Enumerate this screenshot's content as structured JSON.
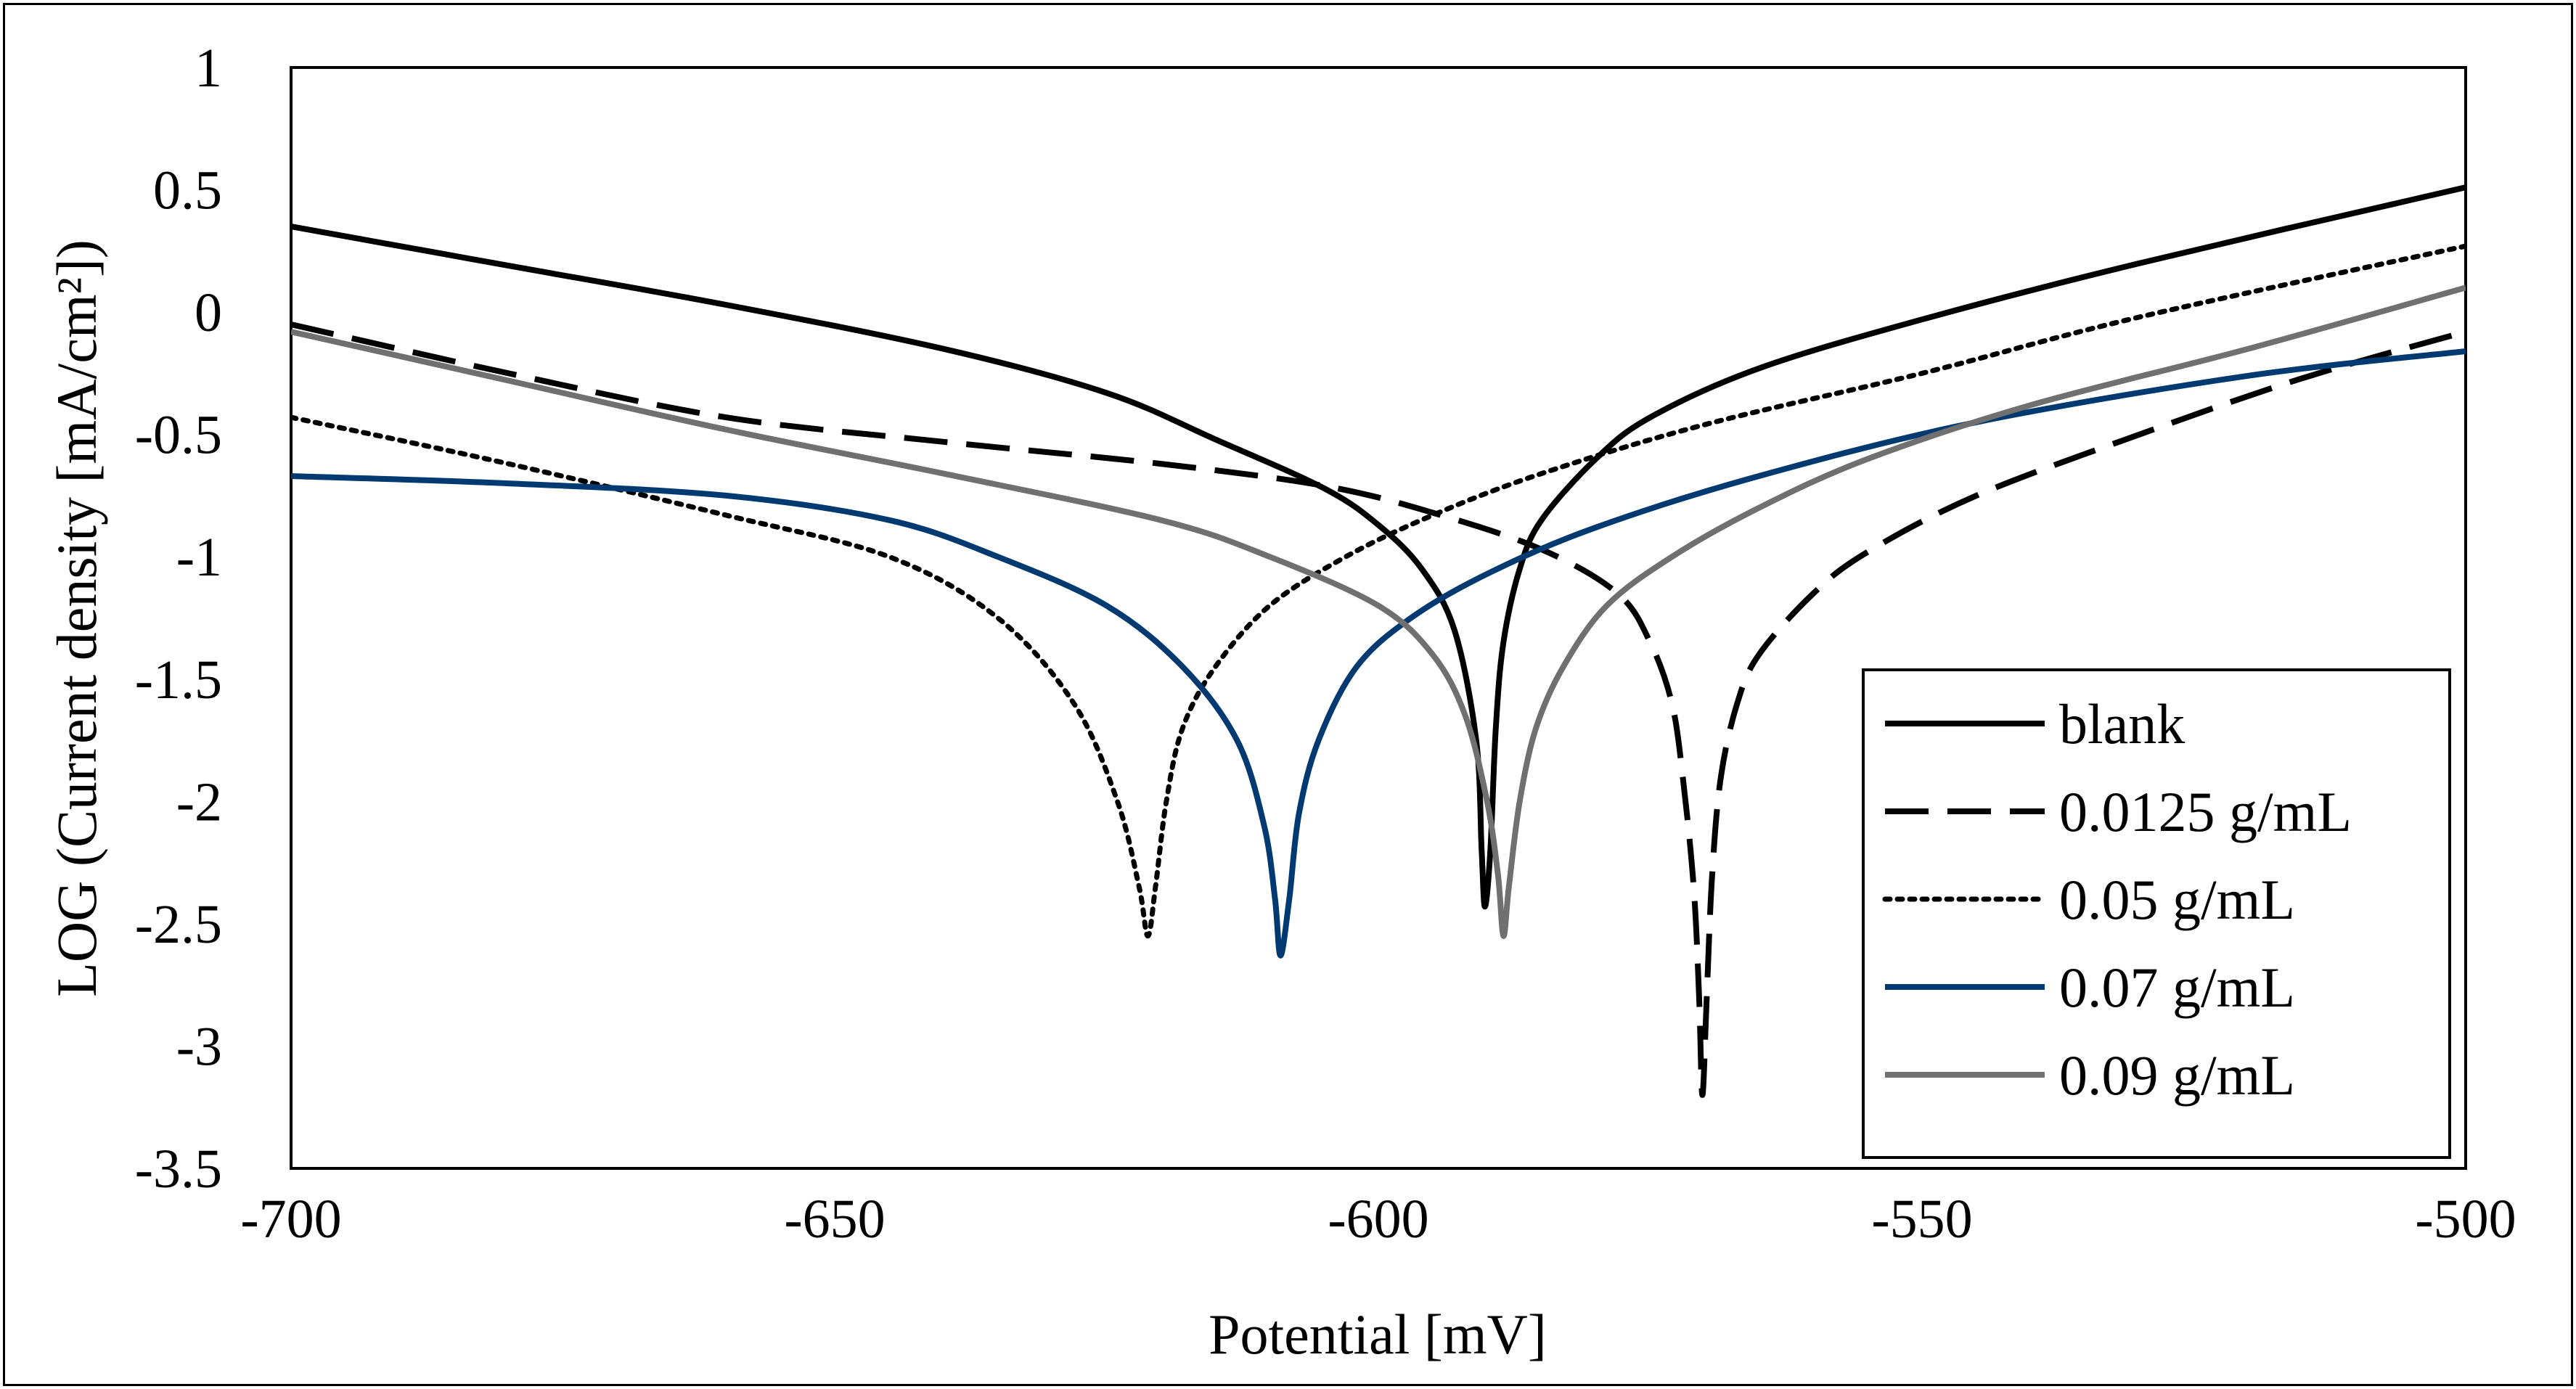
{
  "chart_data": {
    "type": "line",
    "title": "",
    "xlabel": "Potential [mV]",
    "ylabel": "LOG (Current density [mA/cm²])",
    "xlim": [
      -700,
      -500
    ],
    "ylim": [
      -3.5,
      1
    ],
    "x_ticks": [
      -700,
      -650,
      -600,
      -550,
      -500
    ],
    "y_ticks": [
      1,
      0.5,
      0,
      -0.5,
      -1,
      -1.5,
      -2,
      -2.5,
      -3,
      -3.5
    ],
    "grid": false,
    "legend_position": "bottom-right",
    "series": [
      {
        "name": "blank",
        "color": "#000000",
        "dash": "solid",
        "points": [
          [
            -700,
            0.35
          ],
          [
            -680,
            0.19
          ],
          [
            -660,
            0.03
          ],
          [
            -640,
            -0.15
          ],
          [
            -625,
            -0.33
          ],
          [
            -615,
            -0.52
          ],
          [
            -605,
            -0.72
          ],
          [
            -600,
            -0.87
          ],
          [
            -596,
            -1.05
          ],
          [
            -593,
            -1.3
          ],
          [
            -591,
            -1.75
          ],
          [
            -590.5,
            -2.2
          ],
          [
            -590.2,
            -2.43
          ],
          [
            -589.7,
            -2.2
          ],
          [
            -589.2,
            -1.7
          ],
          [
            -588.5,
            -1.35
          ],
          [
            -587,
            -1.05
          ],
          [
            -585,
            -0.85
          ],
          [
            -580,
            -0.6
          ],
          [
            -575,
            -0.43
          ],
          [
            -565,
            -0.23
          ],
          [
            -550,
            -0.03
          ],
          [
            -530,
            0.2
          ],
          [
            -500,
            0.51
          ]
        ]
      },
      {
        "name": "0.0125 g/mL",
        "color": "#000000",
        "dash": "long-dash",
        "points": [
          [
            -700,
            -0.05
          ],
          [
            -680,
            -0.25
          ],
          [
            -660,
            -0.43
          ],
          [
            -640,
            -0.53
          ],
          [
            -620,
            -0.62
          ],
          [
            -605,
            -0.71
          ],
          [
            -595,
            -0.82
          ],
          [
            -585,
            -0.97
          ],
          [
            -578,
            -1.15
          ],
          [
            -575,
            -1.35
          ],
          [
            -573,
            -1.6
          ],
          [
            -572,
            -1.9
          ],
          [
            -571,
            -2.35
          ],
          [
            -570.5,
            -2.8
          ],
          [
            -570.2,
            -3.2
          ],
          [
            -569.8,
            -2.8
          ],
          [
            -569.3,
            -2.3
          ],
          [
            -568.5,
            -1.9
          ],
          [
            -567,
            -1.6
          ],
          [
            -565,
            -1.4
          ],
          [
            -560,
            -1.15
          ],
          [
            -555,
            -0.98
          ],
          [
            -545,
            -0.75
          ],
          [
            -530,
            -0.5
          ],
          [
            -515,
            -0.27
          ],
          [
            -500,
            -0.08
          ]
        ]
      },
      {
        "name": "0.05 g/mL",
        "color": "#000000",
        "dash": "dotted",
        "points": [
          [
            -700,
            -0.43
          ],
          [
            -680,
            -0.62
          ],
          [
            -660,
            -0.83
          ],
          [
            -645,
            -1.0
          ],
          [
            -635,
            -1.25
          ],
          [
            -628,
            -1.6
          ],
          [
            -624,
            -2.0
          ],
          [
            -622,
            -2.35
          ],
          [
            -621.2,
            -2.55
          ],
          [
            -620.5,
            -2.35
          ],
          [
            -619.5,
            -2.0
          ],
          [
            -618,
            -1.7
          ],
          [
            -615,
            -1.45
          ],
          [
            -610,
            -1.2
          ],
          [
            -603,
            -1.0
          ],
          [
            -595,
            -0.83
          ],
          [
            -585,
            -0.66
          ],
          [
            -570,
            -0.46
          ],
          [
            -550,
            -0.25
          ],
          [
            -530,
            -0.02
          ],
          [
            -500,
            0.27
          ]
        ]
      },
      {
        "name": "0.07 g/mL",
        "color": "#003A70",
        "dash": "solid",
        "points": [
          [
            -700,
            -0.67
          ],
          [
            -680,
            -0.7
          ],
          [
            -660,
            -0.75
          ],
          [
            -645,
            -0.85
          ],
          [
            -635,
            -1.0
          ],
          [
            -625,
            -1.2
          ],
          [
            -618,
            -1.45
          ],
          [
            -613,
            -1.75
          ],
          [
            -610.5,
            -2.1
          ],
          [
            -609.5,
            -2.4
          ],
          [
            -609,
            -2.63
          ],
          [
            -608.2,
            -2.4
          ],
          [
            -607.3,
            -2.05
          ],
          [
            -605.5,
            -1.75
          ],
          [
            -602,
            -1.45
          ],
          [
            -597,
            -1.25
          ],
          [
            -590,
            -1.07
          ],
          [
            -580,
            -0.88
          ],
          [
            -565,
            -0.67
          ],
          [
            -545,
            -0.45
          ],
          [
            -520,
            -0.26
          ],
          [
            -500,
            -0.16
          ]
        ]
      },
      {
        "name": "0.09 g/mL",
        "color": "#707070",
        "dash": "solid",
        "points": [
          [
            -700,
            -0.08
          ],
          [
            -680,
            -0.28
          ],
          [
            -660,
            -0.48
          ],
          [
            -640,
            -0.66
          ],
          [
            -620,
            -0.85
          ],
          [
            -610,
            -1.0
          ],
          [
            -600,
            -1.2
          ],
          [
            -595,
            -1.4
          ],
          [
            -592,
            -1.65
          ],
          [
            -590,
            -2.0
          ],
          [
            -589,
            -2.3
          ],
          [
            -588.5,
            -2.55
          ],
          [
            -588,
            -2.35
          ],
          [
            -587,
            -2.0
          ],
          [
            -585.5,
            -1.7
          ],
          [
            -583,
            -1.45
          ],
          [
            -579,
            -1.2
          ],
          [
            -573,
            -1.0
          ],
          [
            -565,
            -0.8
          ],
          [
            -555,
            -0.6
          ],
          [
            -540,
            -0.38
          ],
          [
            -520,
            -0.15
          ],
          [
            -500,
            0.1
          ]
        ]
      }
    ]
  }
}
